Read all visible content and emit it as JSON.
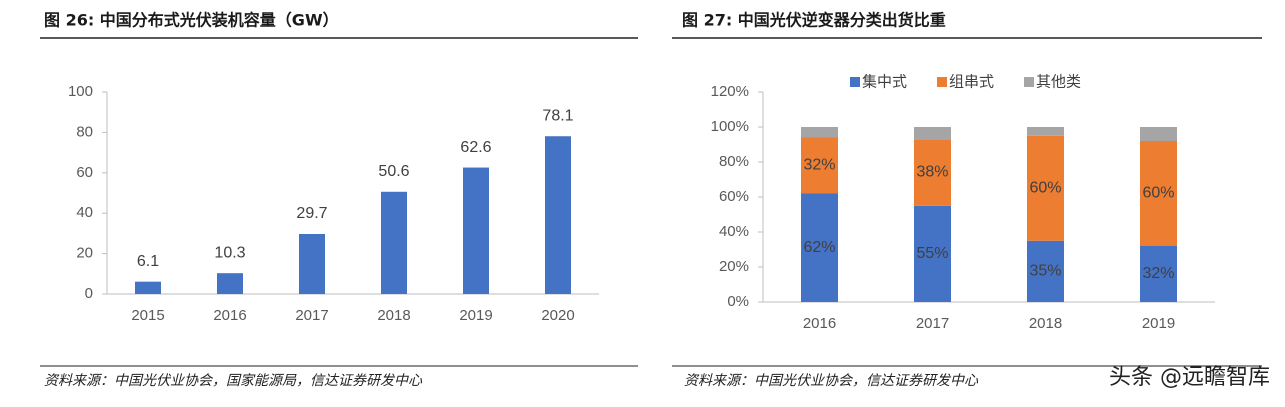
{
  "chart_data": [
    {
      "type": "bar",
      "title": "图 26:  中国分布式光伏装机容量（GW）",
      "source": "资料来源：中国光伏业协会，国家能源局，信达证券研发中心",
      "categories": [
        "2015",
        "2016",
        "2017",
        "2018",
        "2019",
        "2020"
      ],
      "values": [
        6.1,
        10.3,
        29.7,
        50.6,
        62.6,
        78.1
      ],
      "color": "#4472c4",
      "ylim": [
        0,
        100
      ],
      "yticks": [
        0,
        20,
        40,
        60,
        80,
        100
      ],
      "grid": false
    },
    {
      "type": "stacked_bar",
      "title": "图 27:  中国光伏逆变器分类出货比重",
      "source": "资料来源：中国光伏业协会，信达证券研发中心",
      "categories": [
        "2016",
        "2017",
        "2018",
        "2019"
      ],
      "series": [
        {
          "name": "集中式",
          "color": "#4472c4",
          "values": [
            62,
            55,
            35,
            32
          ],
          "value_labels": [
            "62%",
            "55%",
            "35%",
            "32%"
          ]
        },
        {
          "name": "组串式",
          "color": "#ed7d31",
          "values": [
            32,
            38,
            60,
            60
          ],
          "value_labels": [
            "32%",
            "38%",
            "60%",
            "60%"
          ]
        },
        {
          "name": "其他类",
          "color": "#a5a5a5",
          "values": [
            6,
            7,
            5,
            8
          ]
        }
      ],
      "ylim": [
        0,
        120
      ],
      "yticks": [
        {
          "value": 0,
          "label": "0%"
        },
        {
          "value": 20,
          "label": "20%"
        },
        {
          "value": 40,
          "label": "40%"
        },
        {
          "value": 60,
          "label": "60%"
        },
        {
          "value": 80,
          "label": "80%"
        },
        {
          "value": 100,
          "label": "100%"
        },
        {
          "value": 120,
          "label": "120%"
        }
      ],
      "grid": false,
      "legend": "top"
    }
  ],
  "watermark": "头条 @远瞻智库"
}
